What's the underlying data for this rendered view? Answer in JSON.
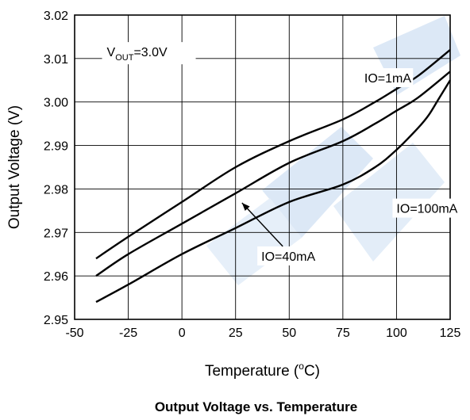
{
  "chart_data": {
    "type": "line",
    "title": "Output Voltage vs. Temperature",
    "xlabel": "Temperature (°C)",
    "xlabel_parts": {
      "prefix": "Temperature (",
      "sup": "o",
      "suffix": "C)"
    },
    "ylabel": "Output Voltage (V)",
    "xlim": [
      -50,
      125
    ],
    "ylim": [
      2.95,
      3.02
    ],
    "x_ticks": [
      -50,
      -25,
      0,
      25,
      50,
      75,
      100,
      125
    ],
    "y_ticks": [
      "2.95",
      "2.96",
      "2.97",
      "2.98",
      "2.99",
      "3.00",
      "3.01",
      "3.02"
    ],
    "grid": true,
    "annotation": {
      "main": "V",
      "sub": "OUT",
      "suffix": "=3.0V"
    },
    "series": [
      {
        "name": "IO=1mA",
        "x": [
          -40,
          -25,
          0,
          25,
          50,
          75,
          90,
          100,
          110,
          125
        ],
        "y": [
          2.964,
          2.969,
          2.977,
          2.985,
          2.991,
          2.996,
          3.0,
          3.003,
          3.006,
          3.012
        ]
      },
      {
        "name": "IO=40mA",
        "x": [
          -40,
          -25,
          0,
          25,
          50,
          75,
          90,
          100,
          110,
          125
        ],
        "y": [
          2.96,
          2.965,
          2.972,
          2.979,
          2.986,
          2.991,
          2.995,
          2.998,
          3.001,
          3.007
        ]
      },
      {
        "name": "IO=100mA",
        "x": [
          -40,
          -25,
          0,
          25,
          50,
          75,
          90,
          100,
          110,
          115,
          120,
          125
        ],
        "y": [
          2.954,
          2.958,
          2.965,
          2.971,
          2.977,
          2.981,
          2.985,
          2.989,
          2.994,
          2.997,
          3.001,
          3.005
        ]
      }
    ],
    "labels": [
      {
        "text": "IO=1mA",
        "x": 85,
        "y": 3.0045
      },
      {
        "text": "IO=100mA",
        "x": 100,
        "y": 2.9745
      },
      {
        "text": "IO=40mA",
        "x": 37,
        "y": 2.9635
      }
    ]
  }
}
